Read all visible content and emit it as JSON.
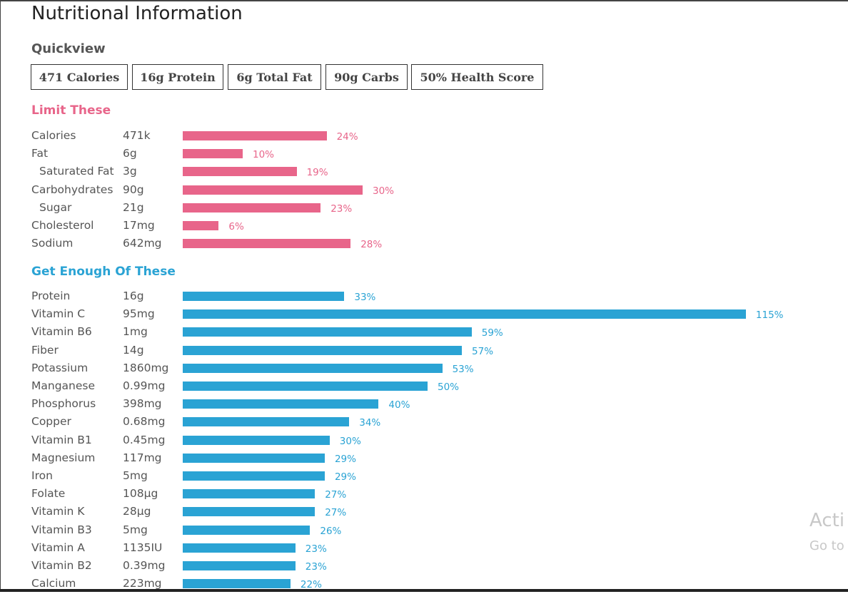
{
  "title": "Nutritional Information",
  "quickview": {
    "label": "Quickview",
    "items": [
      "471 Calories",
      "16g Protein",
      "6g Total Fat",
      "90g Carbs",
      "50% Health Score"
    ]
  },
  "limit": {
    "heading": "Limit These",
    "color": "#e8658a",
    "items": [
      {
        "name": "Calories",
        "amount": "471k",
        "percent_label": "24%",
        "percent": 24
      },
      {
        "name": "Fat",
        "amount": "6g",
        "percent_label": "10%",
        "percent": 10
      },
      {
        "name": "Saturated Fat",
        "amount": "3g",
        "percent_label": "19%",
        "percent": 19,
        "indent": true
      },
      {
        "name": "Carbohydrates",
        "amount": "90g",
        "percent_label": "30%",
        "percent": 30
      },
      {
        "name": "Sugar",
        "amount": "21g",
        "percent_label": "23%",
        "percent": 23,
        "indent": true
      },
      {
        "name": "Cholesterol",
        "amount": "17mg",
        "percent_label": "6%",
        "percent": 6
      },
      {
        "name": "Sodium",
        "amount": "642mg",
        "percent_label": "28%",
        "percent": 28
      }
    ]
  },
  "enough": {
    "heading": "Get Enough Of These",
    "color": "#2aa3d4",
    "items": [
      {
        "name": "Protein",
        "amount": "16g",
        "percent_label": "33%",
        "percent": 33
      },
      {
        "name": "Vitamin C",
        "amount": "95mg",
        "percent_label": "115%",
        "percent": 115
      },
      {
        "name": "Vitamin B6",
        "amount": "1mg",
        "percent_label": "59%",
        "percent": 59
      },
      {
        "name": "Fiber",
        "amount": "14g",
        "percent_label": "57%",
        "percent": 57
      },
      {
        "name": "Potassium",
        "amount": "1860mg",
        "percent_label": "53%",
        "percent": 53
      },
      {
        "name": "Manganese",
        "amount": "0.99mg",
        "percent_label": "50%",
        "percent": 50
      },
      {
        "name": "Phosphorus",
        "amount": "398mg",
        "percent_label": "40%",
        "percent": 40
      },
      {
        "name": "Copper",
        "amount": "0.68mg",
        "percent_label": "34%",
        "percent": 34
      },
      {
        "name": "Vitamin B1",
        "amount": "0.45mg",
        "percent_label": "30%",
        "percent": 30
      },
      {
        "name": "Magnesium",
        "amount": "117mg",
        "percent_label": "29%",
        "percent": 29
      },
      {
        "name": "Iron",
        "amount": "5mg",
        "percent_label": "29%",
        "percent": 29
      },
      {
        "name": "Folate",
        "amount": "108µg",
        "percent_label": "27%",
        "percent": 27
      },
      {
        "name": "Vitamin K",
        "amount": "28µg",
        "percent_label": "27%",
        "percent": 27
      },
      {
        "name": "Vitamin B3",
        "amount": "5mg",
        "percent_label": "26%",
        "percent": 26
      },
      {
        "name": "Vitamin A",
        "amount": "1135IU",
        "percent_label": "23%",
        "percent": 23
      },
      {
        "name": "Vitamin B2",
        "amount": "0.39mg",
        "percent_label": "23%",
        "percent": 23
      },
      {
        "name": "Calcium",
        "amount": "223mg",
        "percent_label": "22%",
        "percent": 22
      }
    ]
  },
  "watermark": {
    "line1": "Acti",
    "line2": "Go to"
  }
}
